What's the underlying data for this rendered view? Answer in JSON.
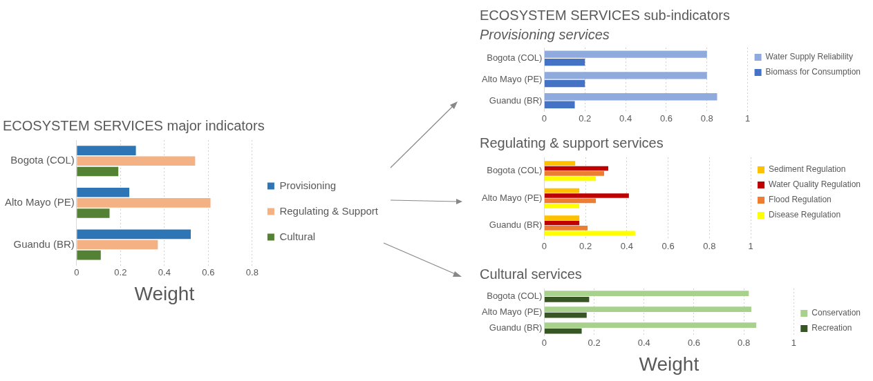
{
  "chart_data": [
    {
      "type": "bar",
      "orientation": "horizontal",
      "title": "ECOSYSTEM SERVICES major indicators",
      "xlabel": "Weight",
      "categories": [
        "Bogota (COL)",
        "Alto Mayo (PE)",
        "Guandu (BR)"
      ],
      "series": [
        {
          "name": "Provisioning",
          "color": "#2e75b6",
          "values": [
            0.27,
            0.24,
            0.52
          ]
        },
        {
          "name": "Regulating & Support",
          "color": "#f4b183",
          "values": [
            0.54,
            0.61,
            0.37
          ]
        },
        {
          "name": "Cultural",
          "color": "#548235",
          "values": [
            0.19,
            0.15,
            0.11
          ]
        }
      ],
      "xlim": [
        0,
        0.8
      ],
      "xticks": [
        0,
        0.2,
        0.4,
        0.6,
        0.8
      ],
      "grid": "x",
      "legend": "right"
    },
    {
      "type": "bar",
      "orientation": "horizontal",
      "title": "ECOSYSTEM SERVICES sub-indicators",
      "subtitle": "Provisioning services",
      "categories": [
        "Bogota (COL)",
        "Alto Mayo (PE)",
        "Guandu (BR)"
      ],
      "series": [
        {
          "name": "Water Supply Reliability",
          "color": "#8faadc",
          "values": [
            0.8,
            0.8,
            0.85
          ]
        },
        {
          "name": "Biomass for Consumption",
          "color": "#4472c4",
          "values": [
            0.2,
            0.2,
            0.15
          ]
        }
      ],
      "xlim": [
        0,
        1
      ],
      "xticks": [
        0,
        0.2,
        0.4,
        0.6,
        0.8,
        1
      ],
      "grid": "x",
      "legend": "right"
    },
    {
      "type": "bar",
      "orientation": "horizontal",
      "title": "Regulating & support services",
      "categories": [
        "Bogota (COL)",
        "Alto Mayo (PE)",
        "Guandu (BR)"
      ],
      "series": [
        {
          "name": "Sediment Regulation",
          "color": "#ffc000",
          "values": [
            0.15,
            0.17,
            0.17
          ]
        },
        {
          "name": "Water Quality Regulation",
          "color": "#c00000",
          "values": [
            0.31,
            0.41,
            0.17
          ]
        },
        {
          "name": "Flood Regulation",
          "color": "#ed7d31",
          "values": [
            0.29,
            0.25,
            0.21
          ]
        },
        {
          "name": "Disease Regulation",
          "color": "#ffff00",
          "values": [
            0.25,
            0.17,
            0.44
          ]
        }
      ],
      "xlim": [
        0,
        1
      ],
      "xticks": [
        0,
        0.2,
        0.4,
        0.6,
        0.8,
        1
      ],
      "grid": "x",
      "legend": "right"
    },
    {
      "type": "bar",
      "orientation": "horizontal",
      "title": "Cultural services",
      "xlabel": "Weight",
      "categories": [
        "Bogota (COL)",
        "Alto Mayo (PE)",
        "Guandu (BR)"
      ],
      "series": [
        {
          "name": "Conservation",
          "color": "#a9d18e",
          "values": [
            0.82,
            0.83,
            0.85
          ]
        },
        {
          "name": "Recreation",
          "color": "#375623",
          "values": [
            0.18,
            0.17,
            0.15
          ]
        }
      ],
      "xlim": [
        0,
        1
      ],
      "xticks": [
        0,
        0.2,
        0.4,
        0.6,
        0.8,
        1
      ],
      "grid": "x",
      "legend": "right"
    }
  ]
}
